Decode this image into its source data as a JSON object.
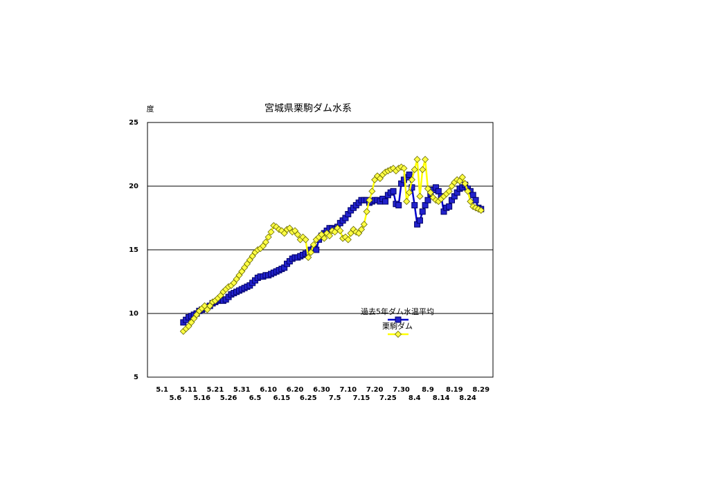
{
  "chart_data": {
    "type": "line",
    "title": "宮城県栗駒ダム水系",
    "y_label": "度",
    "categories": [
      null,
      null,
      null,
      null,
      null,
      "5.1",
      null,
      null,
      null,
      null,
      "5.6",
      null,
      null,
      null,
      null,
      "5.11",
      null,
      null,
      null,
      null,
      "5.16",
      null,
      null,
      null,
      null,
      "5.21",
      null,
      null,
      null,
      null,
      "5.26",
      null,
      null,
      null,
      null,
      "5.31",
      null,
      null,
      null,
      null,
      "6.5",
      null,
      null,
      null,
      null,
      "6.10",
      null,
      null,
      null,
      null,
      "6.15",
      null,
      null,
      null,
      null,
      "6.20",
      null,
      null,
      null,
      null,
      "6.25",
      null,
      null,
      null,
      null,
      "6.30",
      null,
      null,
      null,
      null,
      "7.5",
      null,
      null,
      null,
      null,
      "7.10",
      null,
      null,
      null,
      null,
      "7.15",
      null,
      null,
      null,
      null,
      "7.20",
      null,
      null,
      null,
      null,
      "7.25",
      null,
      null,
      null,
      null,
      "7.30",
      null,
      null,
      null,
      null,
      "8.4",
      null,
      null,
      null,
      null,
      "8.9",
      null,
      null,
      null,
      null,
      "8.14",
      null,
      null,
      null,
      null,
      "8.19",
      null,
      null,
      null,
      null,
      "8.24",
      null,
      null,
      null,
      null,
      "8.29",
      null,
      null,
      null,
      null
    ],
    "series": [
      {
        "name": "過去5年ダム水温平均",
        "color": "#0000cc",
        "marker": "square",
        "values": [
          null,
          null,
          null,
          null,
          null,
          null,
          null,
          null,
          null,
          null,
          null,
          null,
          null,
          9.3,
          9.5,
          9.7,
          9.8,
          9.9,
          10.0,
          10.2,
          10.3,
          10.4,
          10.5,
          10.6,
          10.8,
          10.9,
          11.0,
          11.1,
          11.0,
          11.1,
          11.3,
          11.5,
          11.6,
          11.7,
          11.8,
          11.9,
          12.0,
          12.1,
          12.2,
          12.4,
          12.6,
          12.8,
          12.9,
          12.9,
          13.0,
          13.0,
          13.1,
          13.2,
          13.3,
          13.4,
          13.5,
          13.6,
          13.9,
          14.1,
          14.3,
          14.4,
          14.4,
          14.5,
          14.6,
          14.7,
          14.8,
          15.0,
          15.1,
          15.0,
          15.8,
          16.1,
          16.3,
          16.5,
          16.7,
          16.7,
          16.6,
          16.8,
          17.1,
          17.3,
          17.5,
          17.8,
          18.1,
          18.3,
          18.5,
          18.7,
          18.9,
          18.9,
          18.9,
          18.7,
          18.8,
          18.9,
          18.9,
          18.8,
          19.0,
          18.8,
          19.3,
          19.5,
          19.6,
          18.6,
          18.5,
          20.2,
          20.5,
          20.7,
          20.9,
          19.9,
          18.5,
          17.0,
          17.3,
          18.0,
          18.5,
          18.9,
          19.4,
          19.7,
          19.9,
          19.6,
          19.2,
          18.0,
          18.3,
          18.4,
          18.9,
          19.2,
          19.5,
          19.8,
          19.9,
          20.1,
          19.8,
          19.6,
          19.3,
          18.9,
          18.3,
          18.2,
          null,
          null,
          null,
          null
        ]
      },
      {
        "name": "栗駒ダム",
        "color": "#ffff00",
        "marker": "diamond",
        "values": [
          null,
          null,
          null,
          null,
          null,
          null,
          null,
          null,
          null,
          null,
          null,
          null,
          null,
          8.6,
          8.8,
          9.0,
          9.3,
          9.6,
          9.9,
          10.2,
          10.4,
          10.6,
          10.3,
          10.6,
          10.9,
          11.0,
          11.2,
          11.4,
          11.7,
          11.9,
          12.1,
          12.2,
          12.4,
          12.7,
          13.0,
          13.3,
          13.6,
          13.9,
          14.2,
          14.5,
          14.8,
          15.0,
          15.1,
          15.3,
          15.6,
          16.0,
          16.4,
          16.9,
          16.8,
          16.6,
          16.5,
          16.3,
          16.6,
          16.7,
          16.4,
          16.5,
          16.2,
          15.8,
          16.0,
          15.8,
          14.4,
          14.8,
          15.4,
          15.8,
          16.0,
          16.2,
          15.9,
          16.3,
          16.1,
          16.5,
          16.4,
          16.7,
          16.5,
          15.9,
          16.0,
          15.8,
          16.3,
          16.6,
          16.4,
          16.3,
          16.6,
          17.0,
          18.0,
          18.9,
          19.6,
          20.5,
          20.8,
          20.6,
          20.9,
          21.1,
          21.2,
          21.3,
          21.4,
          21.2,
          21.4,
          21.5,
          21.4,
          18.8,
          19.5,
          20.5,
          21.3,
          22.1,
          19.2,
          21.3,
          22.1,
          19.8,
          19.5,
          19.1,
          18.9,
          18.8,
          19.0,
          19.2,
          19.4,
          19.6,
          20.0,
          20.3,
          20.5,
          20.4,
          20.7,
          20.2,
          19.6,
          18.8,
          18.4,
          18.3,
          18.2,
          18.1,
          null,
          null,
          null,
          null
        ]
      }
    ],
    "ylim": [
      5,
      25
    ],
    "yticks": [
      5,
      10,
      15,
      20,
      25
    ],
    "grid": true
  }
}
